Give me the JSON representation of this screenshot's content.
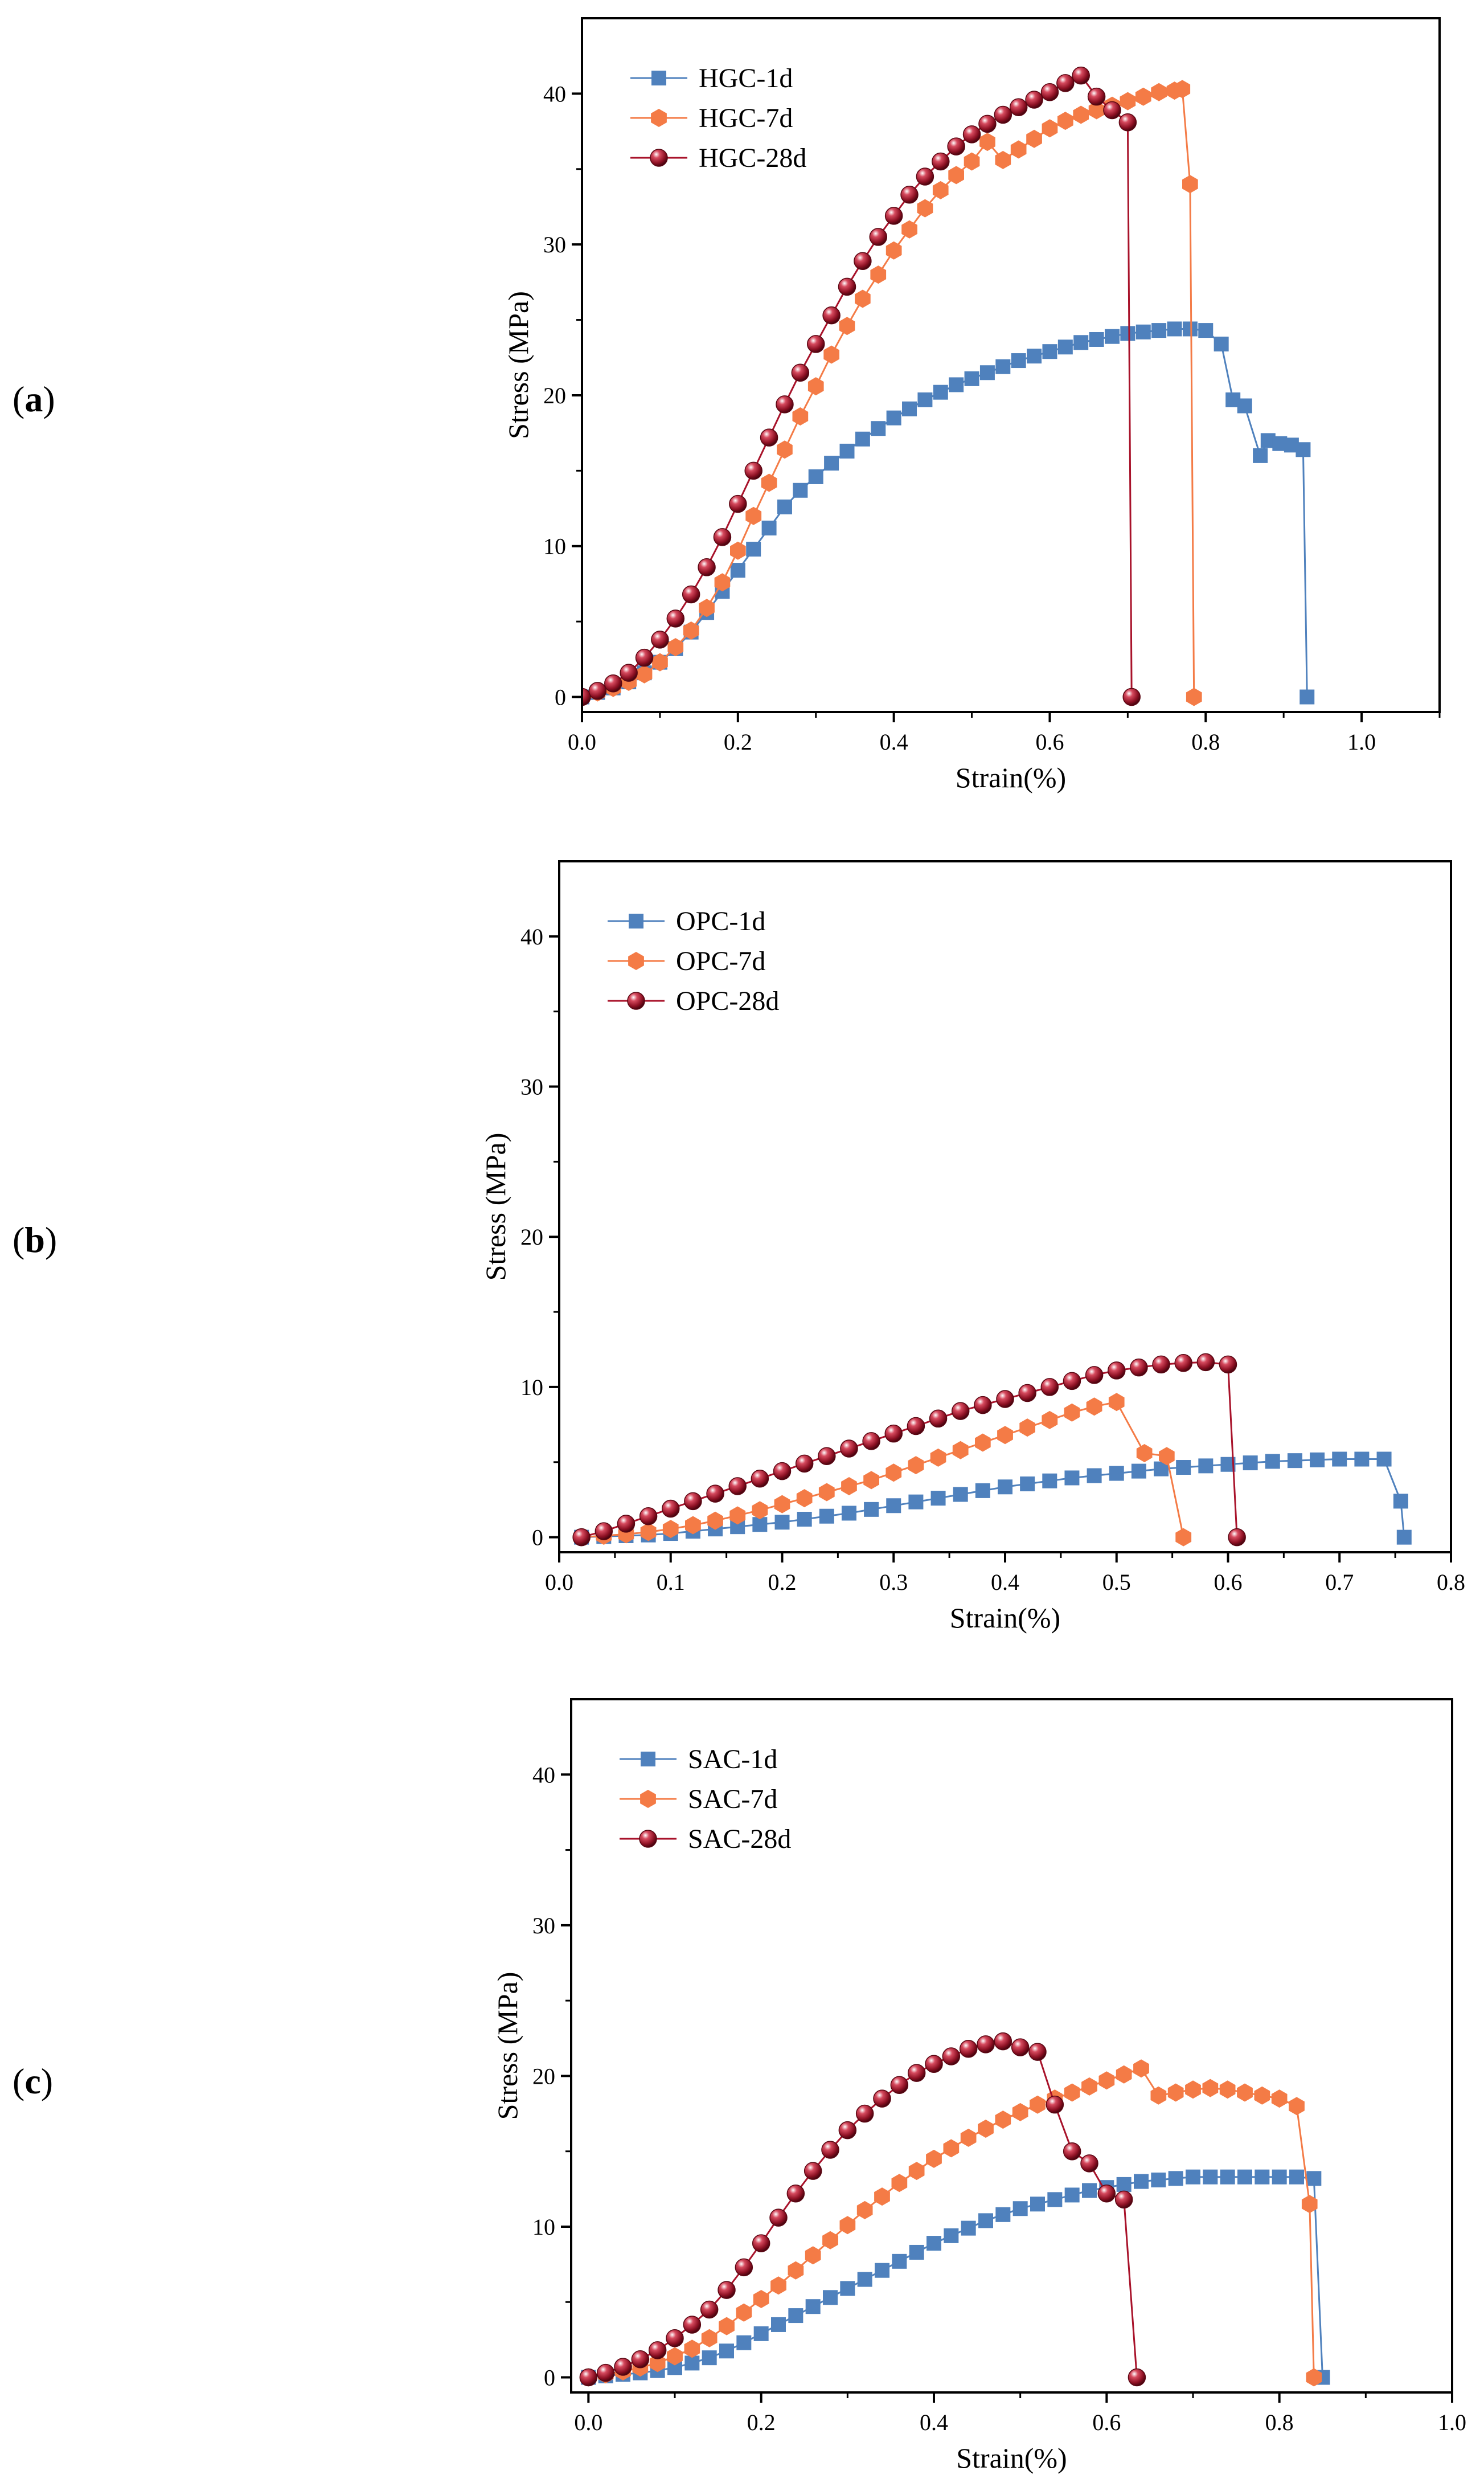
{
  "chart_data": [
    {
      "type": "line",
      "panel_label": "(a)",
      "panel_letter": "a",
      "xlabel": "Strain(%)",
      "ylabel": "Stress (MPa)",
      "xlim": [
        0,
        1.1
      ],
      "ylim": [
        -1,
        45
      ],
      "xticks": [
        "0.0",
        "0.2",
        "0.4",
        "0.6",
        "0.8",
        "1.0"
      ],
      "xtick_values": [
        0,
        0.2,
        0.4,
        0.6,
        0.8,
        1.0
      ],
      "yticks": [
        "0",
        "10",
        "20",
        "30",
        "40"
      ],
      "ytick_values": [
        0,
        10,
        20,
        30,
        40
      ],
      "legend_position": "top-left",
      "series": [
        {
          "name": "HGC-1d",
          "color": "#4f81bd",
          "marker": "square",
          "x": [
            0,
            0.02,
            0.04,
            0.06,
            0.08,
            0.1,
            0.12,
            0.14,
            0.16,
            0.18,
            0.2,
            0.22,
            0.24,
            0.26,
            0.28,
            0.3,
            0.32,
            0.34,
            0.36,
            0.38,
            0.4,
            0.42,
            0.44,
            0.46,
            0.48,
            0.5,
            0.52,
            0.54,
            0.56,
            0.58,
            0.6,
            0.62,
            0.64,
            0.66,
            0.68,
            0.7,
            0.72,
            0.74,
            0.76,
            0.78,
            0.8,
            0.82,
            0.835,
            0.85,
            0.87,
            0.88,
            0.895,
            0.91,
            0.925,
            0.93
          ],
          "values": [
            0,
            0.3,
            0.6,
            1.0,
            1.6,
            2.3,
            3.2,
            4.3,
            5.6,
            7.0,
            8.4,
            9.8,
            11.2,
            12.6,
            13.7,
            14.6,
            15.5,
            16.3,
            17.1,
            17.8,
            18.5,
            19.1,
            19.7,
            20.2,
            20.7,
            21.1,
            21.5,
            21.9,
            22.3,
            22.6,
            22.9,
            23.2,
            23.5,
            23.7,
            23.9,
            24.1,
            24.2,
            24.3,
            24.4,
            24.4,
            24.3,
            23.4,
            19.7,
            19.3,
            16.0,
            17.0,
            16.8,
            16.7,
            16.4,
            0
          ]
        },
        {
          "name": "HGC-7d",
          "color": "#f47b46",
          "marker": "hexagon",
          "x": [
            0,
            0.02,
            0.04,
            0.06,
            0.08,
            0.1,
            0.12,
            0.14,
            0.16,
            0.18,
            0.2,
            0.22,
            0.24,
            0.26,
            0.28,
            0.3,
            0.32,
            0.34,
            0.36,
            0.38,
            0.4,
            0.42,
            0.44,
            0.46,
            0.48,
            0.5,
            0.52,
            0.54,
            0.56,
            0.58,
            0.6,
            0.62,
            0.64,
            0.66,
            0.68,
            0.7,
            0.72,
            0.74,
            0.76,
            0.77,
            0.78,
            0.785
          ],
          "values": [
            0,
            0.3,
            0.6,
            1.0,
            1.5,
            2.3,
            3.3,
            4.4,
            5.9,
            7.6,
            9.7,
            12.0,
            14.2,
            16.4,
            18.6,
            20.6,
            22.7,
            24.6,
            26.4,
            28.0,
            29.6,
            31.0,
            32.4,
            33.6,
            34.6,
            35.5,
            36.8,
            35.6,
            36.3,
            37.0,
            37.7,
            38.2,
            38.6,
            38.9,
            39.2,
            39.5,
            39.8,
            40.1,
            40.2,
            40.3,
            34.0,
            0
          ]
        },
        {
          "name": "HGC-28d",
          "color": "#a8122a",
          "marker": "sphere",
          "x": [
            0,
            0.02,
            0.04,
            0.06,
            0.08,
            0.1,
            0.12,
            0.14,
            0.16,
            0.18,
            0.2,
            0.22,
            0.24,
            0.26,
            0.28,
            0.3,
            0.32,
            0.34,
            0.36,
            0.38,
            0.4,
            0.42,
            0.44,
            0.46,
            0.48,
            0.5,
            0.52,
            0.54,
            0.56,
            0.58,
            0.6,
            0.62,
            0.64,
            0.66,
            0.68,
            0.7,
            0.705
          ],
          "values": [
            0,
            0.4,
            0.9,
            1.6,
            2.6,
            3.8,
            5.2,
            6.8,
            8.6,
            10.6,
            12.8,
            15.0,
            17.2,
            19.4,
            21.5,
            23.4,
            25.3,
            27.2,
            28.9,
            30.5,
            31.9,
            33.3,
            34.5,
            35.5,
            36.5,
            37.3,
            38.0,
            38.6,
            39.1,
            39.6,
            40.1,
            40.7,
            41.2,
            39.8,
            38.9,
            38.1,
            0
          ]
        }
      ]
    },
    {
      "type": "line",
      "panel_label": "(b)",
      "panel_letter": "b",
      "xlabel": "Strain(%)",
      "ylabel": "Stress (MPa)",
      "xlim": [
        0,
        0.8
      ],
      "ylim": [
        -1,
        45
      ],
      "xticks": [
        "0.0",
        "0.1",
        "0.2",
        "0.3",
        "0.4",
        "0.5",
        "0.6",
        "0.7",
        "0.8"
      ],
      "xtick_values": [
        0,
        0.1,
        0.2,
        0.3,
        0.4,
        0.5,
        0.6,
        0.7,
        0.8
      ],
      "yticks": [
        "0",
        "10",
        "20",
        "30",
        "40"
      ],
      "ytick_values": [
        0,
        10,
        20,
        30,
        40
      ],
      "legend_position": "top-left",
      "series": [
        {
          "name": "OPC-1d",
          "color": "#4f81bd",
          "marker": "square",
          "x": [
            0.02,
            0.04,
            0.06,
            0.08,
            0.1,
            0.12,
            0.14,
            0.16,
            0.18,
            0.2,
            0.22,
            0.24,
            0.26,
            0.28,
            0.3,
            0.32,
            0.34,
            0.36,
            0.38,
            0.4,
            0.42,
            0.44,
            0.46,
            0.48,
            0.5,
            0.52,
            0.54,
            0.56,
            0.58,
            0.6,
            0.62,
            0.64,
            0.66,
            0.68,
            0.7,
            0.72,
            0.74,
            0.755,
            0.758
          ],
          "values": [
            0,
            0.05,
            0.1,
            0.15,
            0.25,
            0.4,
            0.55,
            0.7,
            0.85,
            1.0,
            1.2,
            1.4,
            1.6,
            1.85,
            2.1,
            2.35,
            2.6,
            2.85,
            3.1,
            3.35,
            3.55,
            3.75,
            3.95,
            4.1,
            4.25,
            4.4,
            4.55,
            4.65,
            4.75,
            4.85,
            4.95,
            5.05,
            5.1,
            5.15,
            5.2,
            5.2,
            5.2,
            2.4,
            0
          ]
        },
        {
          "name": "OPC-7d",
          "color": "#f47b46",
          "marker": "hexagon",
          "x": [
            0.02,
            0.04,
            0.06,
            0.08,
            0.1,
            0.12,
            0.14,
            0.16,
            0.18,
            0.2,
            0.22,
            0.24,
            0.26,
            0.28,
            0.3,
            0.32,
            0.34,
            0.36,
            0.38,
            0.4,
            0.42,
            0.44,
            0.46,
            0.48,
            0.5,
            0.525,
            0.545,
            0.56
          ],
          "values": [
            0,
            0.1,
            0.2,
            0.35,
            0.55,
            0.8,
            1.1,
            1.45,
            1.8,
            2.2,
            2.6,
            3.0,
            3.4,
            3.8,
            4.3,
            4.8,
            5.3,
            5.8,
            6.3,
            6.8,
            7.3,
            7.8,
            8.3,
            8.7,
            9.0,
            5.6,
            5.4,
            0
          ]
        },
        {
          "name": "OPC-28d",
          "color": "#a8122a",
          "marker": "sphere",
          "x": [
            0.02,
            0.04,
            0.06,
            0.08,
            0.1,
            0.12,
            0.14,
            0.16,
            0.18,
            0.2,
            0.22,
            0.24,
            0.26,
            0.28,
            0.3,
            0.32,
            0.34,
            0.36,
            0.38,
            0.4,
            0.42,
            0.44,
            0.46,
            0.48,
            0.5,
            0.52,
            0.54,
            0.56,
            0.58,
            0.6,
            0.608
          ],
          "values": [
            0,
            0.4,
            0.9,
            1.4,
            1.9,
            2.4,
            2.9,
            3.4,
            3.9,
            4.4,
            4.9,
            5.4,
            5.9,
            6.4,
            6.9,
            7.4,
            7.9,
            8.4,
            8.8,
            9.2,
            9.6,
            10.0,
            10.4,
            10.8,
            11.1,
            11.3,
            11.5,
            11.6,
            11.65,
            11.5,
            0
          ]
        }
      ]
    },
    {
      "type": "line",
      "panel_label": "(c)",
      "panel_letter": "c",
      "xlabel": "Strain(%)",
      "ylabel": "Stress (MPa)",
      "xlim": [
        -0.02,
        1.0
      ],
      "ylim": [
        -1,
        45
      ],
      "xticks": [
        "0.0",
        "0.2",
        "0.4",
        "0.6",
        "0.8",
        "1.0"
      ],
      "xtick_values": [
        0,
        0.2,
        0.4,
        0.6,
        0.8,
        1.0
      ],
      "yticks": [
        "0",
        "10",
        "20",
        "30",
        "40"
      ],
      "ytick_values": [
        0,
        10,
        20,
        30,
        40
      ],
      "legend_position": "top-left",
      "series": [
        {
          "name": "SAC-1d",
          "color": "#4f81bd",
          "marker": "square",
          "x": [
            0,
            0.02,
            0.04,
            0.06,
            0.08,
            0.1,
            0.12,
            0.14,
            0.16,
            0.18,
            0.2,
            0.22,
            0.24,
            0.26,
            0.28,
            0.3,
            0.32,
            0.34,
            0.36,
            0.38,
            0.4,
            0.42,
            0.44,
            0.46,
            0.48,
            0.5,
            0.52,
            0.54,
            0.56,
            0.58,
            0.6,
            0.62,
            0.64,
            0.66,
            0.68,
            0.7,
            0.72,
            0.74,
            0.76,
            0.78,
            0.8,
            0.82,
            0.84,
            0.85
          ],
          "values": [
            0,
            0.1,
            0.2,
            0.3,
            0.45,
            0.65,
            0.95,
            1.3,
            1.75,
            2.3,
            2.9,
            3.5,
            4.1,
            4.7,
            5.3,
            5.9,
            6.5,
            7.1,
            7.7,
            8.3,
            8.9,
            9.4,
            9.9,
            10.4,
            10.8,
            11.2,
            11.5,
            11.8,
            12.1,
            12.4,
            12.6,
            12.8,
            13.0,
            13.1,
            13.2,
            13.3,
            13.3,
            13.3,
            13.3,
            13.3,
            13.3,
            13.3,
            13.2,
            0
          ]
        },
        {
          "name": "SAC-7d",
          "color": "#f47b46",
          "marker": "hexagon",
          "x": [
            0,
            0.02,
            0.04,
            0.06,
            0.08,
            0.1,
            0.12,
            0.14,
            0.16,
            0.18,
            0.2,
            0.22,
            0.24,
            0.26,
            0.28,
            0.3,
            0.32,
            0.34,
            0.36,
            0.38,
            0.4,
            0.42,
            0.44,
            0.46,
            0.48,
            0.5,
            0.52,
            0.54,
            0.56,
            0.58,
            0.6,
            0.62,
            0.64,
            0.66,
            0.68,
            0.7,
            0.72,
            0.74,
            0.76,
            0.78,
            0.8,
            0.82,
            0.835,
            0.84
          ],
          "values": [
            0,
            0.2,
            0.4,
            0.65,
            0.95,
            1.4,
            1.9,
            2.6,
            3.4,
            4.3,
            5.2,
            6.1,
            7.1,
            8.1,
            9.1,
            10.1,
            11.1,
            12.0,
            12.9,
            13.7,
            14.5,
            15.2,
            15.9,
            16.5,
            17.1,
            17.6,
            18.1,
            18.5,
            18.9,
            19.3,
            19.7,
            20.1,
            20.5,
            18.7,
            18.9,
            19.1,
            19.2,
            19.1,
            18.9,
            18.7,
            18.5,
            18.0,
            11.5,
            0
          ]
        },
        {
          "name": "SAC-28d",
          "color": "#a8122a",
          "marker": "sphere",
          "x": [
            0,
            0.02,
            0.04,
            0.06,
            0.08,
            0.1,
            0.12,
            0.14,
            0.16,
            0.18,
            0.2,
            0.22,
            0.24,
            0.26,
            0.28,
            0.3,
            0.32,
            0.34,
            0.36,
            0.38,
            0.4,
            0.42,
            0.44,
            0.46,
            0.48,
            0.5,
            0.52,
            0.54,
            0.56,
            0.58,
            0.6,
            0.62,
            0.635
          ],
          "values": [
            0,
            0.3,
            0.7,
            1.2,
            1.8,
            2.6,
            3.5,
            4.5,
            5.8,
            7.3,
            8.9,
            10.6,
            12.2,
            13.7,
            15.1,
            16.4,
            17.5,
            18.5,
            19.4,
            20.2,
            20.8,
            21.3,
            21.8,
            22.1,
            22.3,
            21.9,
            21.6,
            18.1,
            15.0,
            14.2,
            12.2,
            11.8,
            0
          ]
        }
      ]
    }
  ]
}
